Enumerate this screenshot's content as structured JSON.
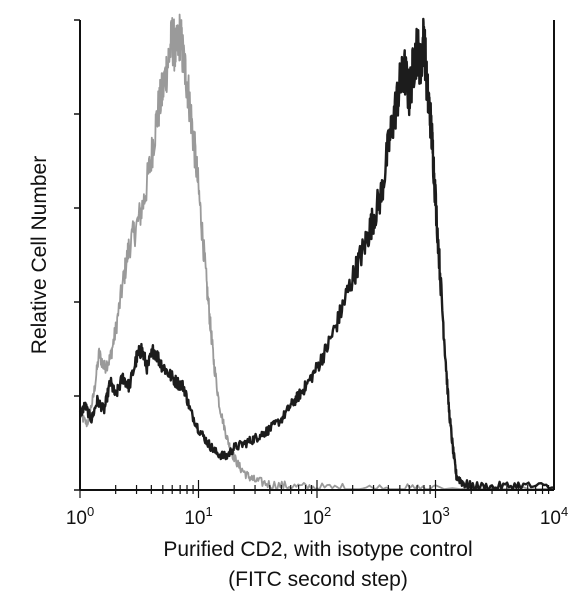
{
  "chart_data": {
    "type": "line",
    "title": "",
    "xlabel": "Purified CD2, with isotype control",
    "xlabel_line2": "(FITC second step)",
    "ylabel": "Relative Cell Number",
    "xscale": "log",
    "xlim": [
      1,
      10000
    ],
    "ylim": [
      0,
      100
    ],
    "grid": false,
    "x_ticks": [
      {
        "base": "10",
        "exp": "0",
        "value": 1
      },
      {
        "base": "10",
        "exp": "1",
        "value": 10
      },
      {
        "base": "10",
        "exp": "2",
        "value": 100
      },
      {
        "base": "10",
        "exp": "3",
        "value": 1000
      },
      {
        "base": "10",
        "exp": "4",
        "value": 10000
      }
    ],
    "series": [
      {
        "color": "#9a9a9a",
        "x": [
          1.0,
          1.15,
          1.3,
          1.45,
          1.6,
          1.8,
          2.0,
          2.3,
          2.6,
          3.0,
          3.5,
          4.0,
          4.5,
          5.0,
          5.5,
          6.0,
          6.5,
          7.0,
          7.5,
          8.0,
          8.7,
          9.5,
          10.5,
          11.5,
          12.5,
          13.5,
          15,
          17,
          19,
          22,
          26,
          30,
          40,
          60,
          100,
          200,
          500,
          1000,
          10000
        ],
        "values": [
          16,
          14,
          20,
          29,
          26,
          28,
          34,
          44,
          52,
          56,
          62,
          71,
          80,
          85,
          91,
          96,
          93,
          97,
          91,
          87,
          79,
          70,
          58,
          46,
          36,
          27,
          18,
          12,
          8,
          5,
          3,
          2,
          1.2,
          0.8,
          0.5,
          0.4,
          0.3,
          0.2,
          0.1
        ]
      },
      {
        "color": "#1c1c1c",
        "x": [
          1.0,
          1.1,
          1.25,
          1.4,
          1.6,
          1.8,
          2.0,
          2.3,
          2.6,
          3.0,
          3.3,
          3.7,
          4.2,
          4.8,
          5.5,
          6.5,
          7.5,
          8.5,
          10,
          12,
          14,
          17,
          20,
          25,
          30,
          35,
          40,
          50,
          60,
          70,
          80,
          100,
          120,
          150,
          180,
          220,
          260,
          300,
          350,
          400,
          450,
          500,
          550,
          600,
          650,
          700,
          750,
          800,
          850,
          900,
          950,
          1000,
          1100,
          1200,
          1300,
          1400,
          1500,
          1700,
          2000,
          3000,
          5000,
          10000
        ],
        "values": [
          16,
          18,
          15,
          19,
          17,
          23,
          20,
          24,
          22,
          28,
          30,
          26,
          30,
          27,
          25,
          23,
          22,
          17,
          13,
          10,
          8,
          7,
          9,
          10,
          11,
          12,
          13,
          15,
          18,
          20,
          22,
          26,
          30,
          36,
          42,
          48,
          53,
          58,
          63,
          73,
          80,
          86,
          89,
          84,
          90,
          94,
          90,
          97,
          85,
          80,
          72,
          62,
          45,
          30,
          17,
          9,
          3,
          1.5,
          0.8,
          0.6,
          1.0,
          0.5
        ]
      }
    ]
  }
}
